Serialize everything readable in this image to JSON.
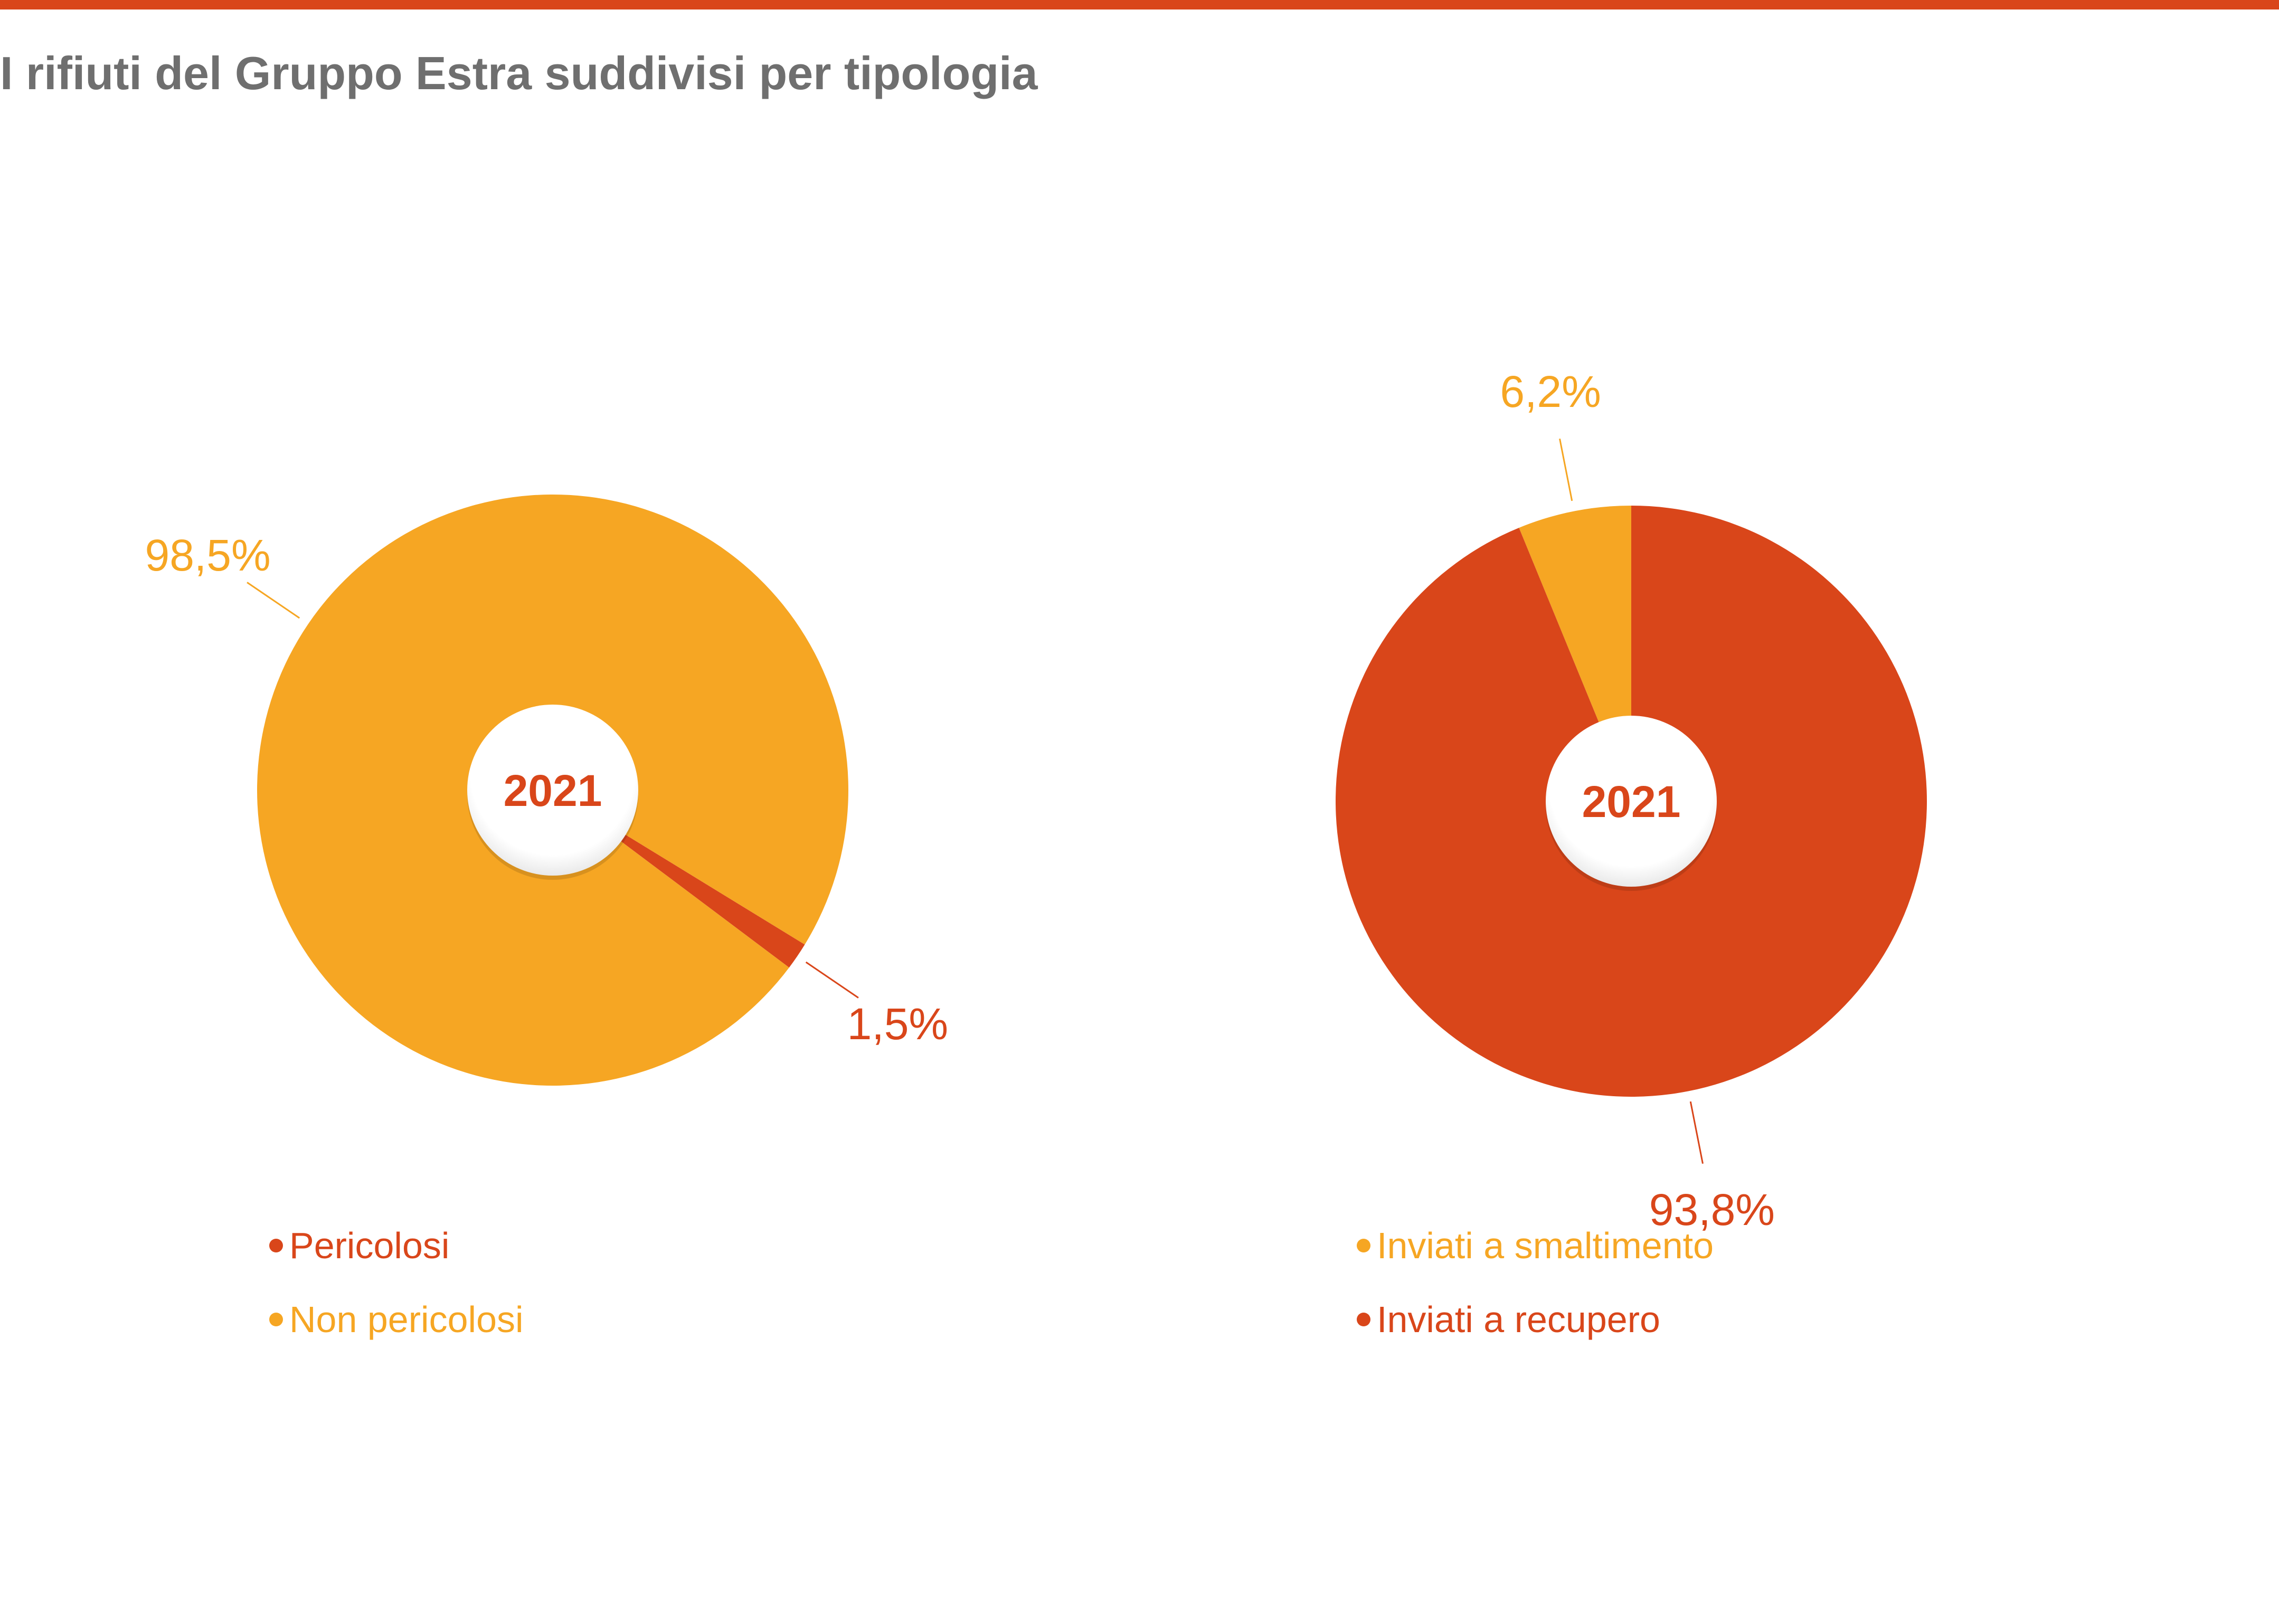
{
  "title": "I rifiuti del Gruppo Estra suddivisi per tipologia",
  "colors": {
    "accent": "#d9461a",
    "secondary": "#f6a623",
    "title_gray": "#6f6f6f"
  },
  "chart_data": [
    {
      "type": "pie",
      "title": "",
      "center_label": "2021",
      "slices": [
        {
          "label": "Pericolosi",
          "value": 1.5,
          "display": "1,5%",
          "color": "#d9461a"
        },
        {
          "label": "Non pericolosi",
          "value": 98.5,
          "display": "98,5%",
          "color": "#f6a623"
        }
      ],
      "legend": [
        "Pericolosi",
        "Non pericolosi"
      ]
    },
    {
      "type": "pie",
      "title": "",
      "center_label": "2021",
      "slices": [
        {
          "label": "Inviati a smaltimento",
          "value": 6.2,
          "display": "6,2%",
          "color": "#f6a623"
        },
        {
          "label": "Inviati a recupero",
          "value": 93.8,
          "display": "93,8%",
          "color": "#d9461a"
        }
      ],
      "legend": [
        "Inviati a smaltimento",
        "Inviati a recupero"
      ]
    }
  ]
}
